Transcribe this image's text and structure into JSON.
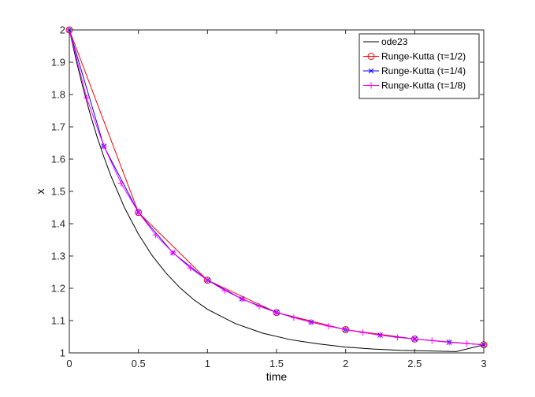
{
  "chart_data": {
    "type": "line",
    "title": "",
    "xlabel": "time",
    "ylabel": "x",
    "xlim": [
      0,
      3
    ],
    "ylim": [
      1,
      2
    ],
    "xticks": [
      "0",
      "0.5",
      "1",
      "1.5",
      "2",
      "2.5",
      "3"
    ],
    "yticks": [
      "1",
      "1.1",
      "1.2",
      "1.3",
      "1.4",
      "1.5",
      "1.6",
      "1.7",
      "1.8",
      "1.9",
      "2"
    ],
    "grid": false,
    "legend_position": "top-right",
    "series": [
      {
        "name": "ode23",
        "color": "#000000",
        "marker": "none",
        "x": [
          0,
          0.05,
          0.1,
          0.15,
          0.2,
          0.25,
          0.3,
          0.4,
          0.5,
          0.6,
          0.7,
          0.8,
          0.9,
          1.0,
          1.2,
          1.4,
          1.6,
          1.8,
          2.0,
          2.2,
          2.4,
          2.6,
          2.8,
          3.0
        ],
        "y": [
          2,
          1.905,
          1.819,
          1.741,
          1.67,
          1.607,
          1.549,
          1.449,
          1.368,
          1.301,
          1.247,
          1.202,
          1.165,
          1.135,
          1.091,
          1.061,
          1.041,
          1.028,
          1.018,
          1.012,
          1.008,
          1.006,
          1.004,
          1.025
        ]
      },
      {
        "name": "Runge-Kutta  (τ=1/2)",
        "color": "#ff0000",
        "marker": "circle",
        "x": [
          0,
          0.5,
          1,
          1.5,
          2,
          2.5,
          3
        ],
        "y": [
          2,
          1.435,
          1.225,
          1.125,
          1.072,
          1.043,
          1.025
        ]
      },
      {
        "name": "Runge-Kutta  (τ=1/4)",
        "color": "#0000ff",
        "marker": "x",
        "x": [
          0,
          0.25,
          0.5,
          0.75,
          1,
          1.25,
          1.5,
          1.75,
          2,
          2.25,
          2.5,
          2.75,
          3
        ],
        "y": [
          2,
          1.64,
          1.435,
          1.31,
          1.225,
          1.167,
          1.125,
          1.095,
          1.072,
          1.055,
          1.043,
          1.033,
          1.025
        ]
      },
      {
        "name": "Runge-Kutta  (τ=1/8)",
        "color": "#ff00ff",
        "marker": "plus",
        "x": [
          0,
          0.125,
          0.25,
          0.375,
          0.5,
          0.625,
          0.75,
          0.875,
          1,
          1.125,
          1.25,
          1.375,
          1.5,
          1.625,
          1.75,
          1.875,
          2,
          2.125,
          2.25,
          2.375,
          2.5,
          2.625,
          2.75,
          2.875,
          3
        ],
        "y": [
          2,
          1.79,
          1.64,
          1.525,
          1.435,
          1.365,
          1.31,
          1.263,
          1.225,
          1.193,
          1.167,
          1.144,
          1.125,
          1.109,
          1.095,
          1.083,
          1.072,
          1.063,
          1.055,
          1.048,
          1.043,
          1.038,
          1.033,
          1.029,
          1.025
        ]
      }
    ]
  }
}
